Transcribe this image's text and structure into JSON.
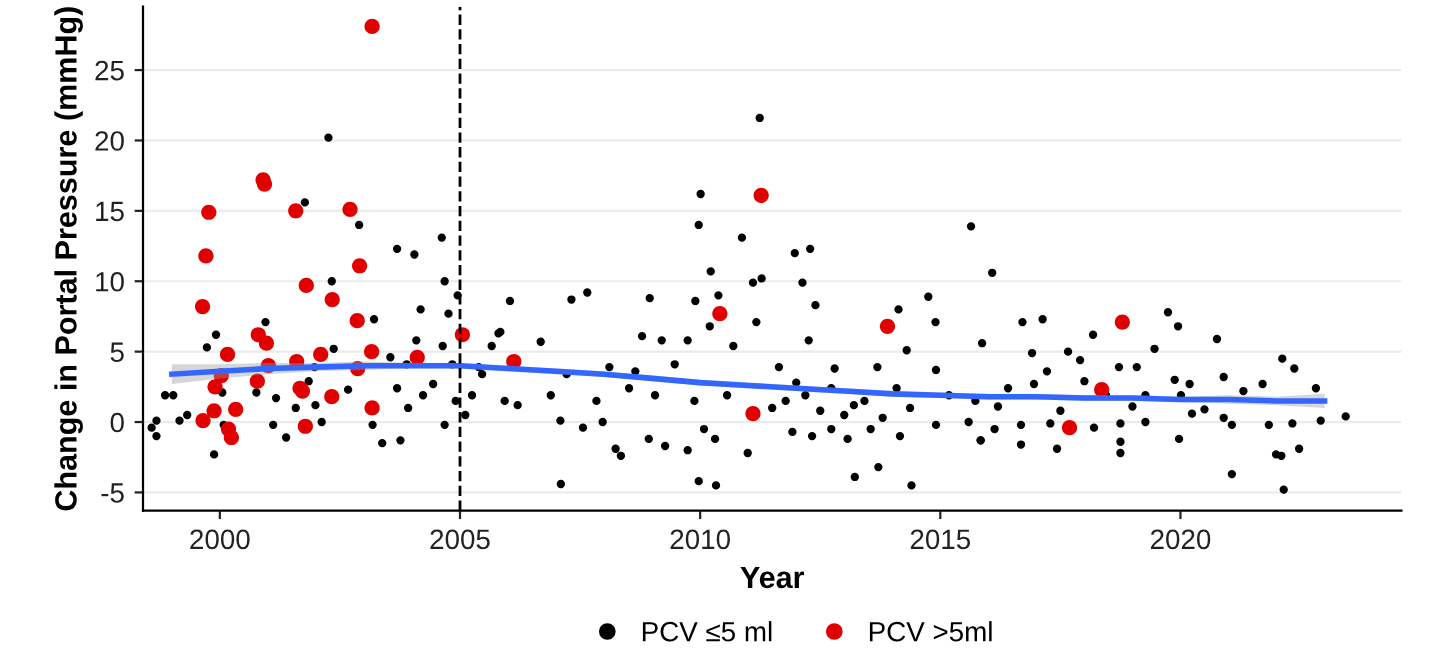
{
  "chart_data": {
    "type": "scatter",
    "xlabel": "Year",
    "ylabel": "Change in Portal Pressure (mmHg)",
    "xlim": [
      1998.4,
      2024.6
    ],
    "ylim": [
      -6.3,
      29.5
    ],
    "xticks": [
      2000,
      2005,
      2010,
      2015,
      2020
    ],
    "yticks": [
      -5,
      0,
      5,
      10,
      15,
      20,
      25
    ],
    "grid": "y",
    "legend": "bottom",
    "ref_lines": [
      {
        "axis": "x",
        "value": 2005,
        "label": null,
        "color": "#000000",
        "line_style": "dashed"
      }
    ],
    "series": [
      {
        "name": "PCV ≤5 ml",
        "color": "#000000",
        "marker": "circle",
        "x": [
          2002.26,
          2001.77,
          2002.9,
          2003.69,
          2004.05,
          2004.62,
          2004.68,
          2002.33,
          2004.95,
          2004.76,
          2004.18,
          2000.95,
          1999.92,
          2003.21,
          1999.73,
          2002.37,
          2004.09,
          2004.64,
          2004.84,
          2003.55,
          2003.89,
          1998.86,
          1999.03,
          1998.68,
          1998.58,
          1998.68,
          1999.16,
          1999.32,
          1999.88,
          2000.08,
          2000.05,
          2000.76,
          2001.17,
          2001.11,
          2001.38,
          2001.58,
          2001.99,
          2002.12,
          2001.97,
          2001.85,
          2002.67,
          2003.18,
          2003.38,
          2003.76,
          2003.69,
          2003.92,
          2004.23,
          2004.44,
          2004.68,
          2004.91,
          2005.11,
          2005.25,
          2005.66,
          2005.8,
          2006.04,
          2005.93,
          2005.46,
          2005.39,
          2011.24,
          2010.01,
          2009.97,
          2010.87,
          2010.22,
          2011.97,
          2012.29,
          2012.13,
          2011.1,
          2011.28,
          2010.38,
          2009.9,
          2007.32,
          2007.65,
          2008.95,
          2012.4,
          2011.17,
          2014.13,
          2014.75,
          2014.9,
          2015.64,
          2010.2,
          2006.68,
          2005.84,
          2008.79,
          2009.2,
          2009.74,
          2010.69,
          2012.26,
          2014.3,
          2015.87,
          2007.22,
          2008.11,
          2008.65,
          2009.47,
          2011.64,
          2012.8,
          2013.69,
          2014.91,
          2006.89,
          2007.84,
          2008.52,
          2009.06,
          2009.88,
          2010.56,
          2011.78,
          2012.19,
          2012.73,
          2013.0,
          2013.42,
          2014.09,
          2014.37,
          2015.18,
          2015.73,
          2006.2,
          2007.09,
          2007.56,
          2007.97,
          2008.93,
          2009.27,
          2009.74,
          2010.08,
          2010.31,
          2010.99,
          2011.92,
          2012.33,
          2012.73,
          2013.07,
          2013.55,
          2014.16,
          2014.91,
          2008.24,
          2008.35,
          2007.1,
          2009.97,
          2010.33,
          2013.22,
          2013.71,
          2014.4,
          2015.84,
          2016.08,
          2016.71,
          2017.13,
          2016.91,
          2017.66,
          2018.18,
          2017.91,
          2019.46,
          2019.74,
          2019.95,
          2020.76,
          2022.12,
          2022.37,
          2017.22,
          2018.72,
          2019.09,
          2019.88,
          2020.19,
          2020.9,
          2021.71,
          2016.41,
          2016.95,
          2018.45,
          2019.27,
          2020.01,
          2021.31,
          2022.82,
          2015.59,
          2016.13,
          2016.68,
          2017.29,
          2018.2,
          2018.75,
          2019.27,
          2019.97,
          2020.24,
          2020.9,
          2021.07,
          2021.84,
          2022.33,
          2022.92,
          2023.44,
          2015.84,
          2016.68,
          2017.43,
          2018.75,
          2018.75,
          2021.07,
          2021.99,
          2022.1,
          2022.47,
          2022.15,
          2011.5,
          2012.0,
          2012.5,
          2013.2,
          2013.8,
          2016.2,
          2017.5,
          2018.0,
          2019.0,
          2020.5
        ],
        "values": [
          20.2,
          15.6,
          14.0,
          12.3,
          11.9,
          13.1,
          10.0,
          10.0,
          9.0,
          7.7,
          8.0,
          7.1,
          6.2,
          7.3,
          5.3,
          5.2,
          5.8,
          5.4,
          4.1,
          4.6,
          4.1,
          1.9,
          1.9,
          0.1,
          -0.4,
          -1.0,
          0.1,
          0.5,
          -2.3,
          -0.2,
          2.1,
          2.1,
          1.7,
          -0.2,
          -1.1,
          1.0,
          1.2,
          0.0,
          3.9,
          2.9,
          2.3,
          -0.2,
          -1.5,
          -1.3,
          2.4,
          1.0,
          1.9,
          2.7,
          -0.2,
          1.5,
          0.5,
          1.9,
          5.4,
          6.3,
          8.6,
          1.5,
          3.4,
          3.9,
          21.6,
          16.2,
          14.0,
          13.1,
          10.7,
          12.0,
          12.3,
          9.9,
          9.9,
          10.2,
          9.0,
          8.6,
          8.7,
          9.2,
          8.8,
          8.3,
          7.1,
          8.0,
          8.9,
          7.1,
          13.9,
          6.8,
          5.7,
          6.4,
          6.1,
          5.8,
          5.8,
          5.4,
          5.8,
          5.1,
          5.6,
          3.4,
          3.9,
          3.6,
          4.1,
          3.9,
          3.8,
          3.9,
          3.7,
          1.9,
          1.5,
          2.4,
          1.9,
          1.5,
          1.9,
          1.5,
          1.9,
          2.4,
          0.5,
          1.5,
          2.4,
          1.0,
          1.9,
          1.5,
          1.2,
          0.1,
          -0.4,
          0.0,
          -1.2,
          -1.7,
          -2.0,
          -0.5,
          -1.2,
          -2.2,
          -0.7,
          -1.0,
          -0.5,
          -1.2,
          -0.5,
          -1.0,
          -0.2,
          -1.9,
          -2.4,
          -4.4,
          -4.2,
          -4.5,
          -3.9,
          -3.2,
          -4.5,
          -1.3,
          10.6,
          7.1,
          7.3,
          4.9,
          5.0,
          6.2,
          4.4,
          5.2,
          7.8,
          6.8,
          5.9,
          4.5,
          3.8,
          3.6,
          3.9,
          3.9,
          3.0,
          2.7,
          3.2,
          2.7,
          2.4,
          2.7,
          1.9,
          1.9,
          1.9,
          2.2,
          2.4,
          0.0,
          -0.5,
          -0.2,
          -0.1,
          -0.4,
          -0.1,
          0.0,
          -1.2,
          0.6,
          0.3,
          -0.2,
          -0.2,
          -0.1,
          0.1,
          0.4,
          -1.3,
          -1.6,
          -1.9,
          -2.2,
          -1.4,
          -3.7,
          -2.3,
          -2.4,
          -1.9,
          -4.8,
          1.0,
          2.8,
          0.8,
          1.2,
          0.3,
          1.1,
          0.8,
          2.9,
          1.1,
          0.9
        ]
      },
      {
        "name": "PCV >5ml",
        "color": "#e00000",
        "marker": "circle",
        "x": [
          2003.17,
          2000.93,
          2000.9,
          1999.77,
          2001.58,
          2002.71,
          1999.71,
          2002.91,
          2001.8,
          2002.34,
          1999.64,
          2002.86,
          2000.8,
          2000.97,
          2005.05,
          2000.16,
          2003.16,
          2002.1,
          2001.6,
          2001.01,
          2002.87,
          2004.11,
          2006.12,
          2000.03,
          1999.9,
          2000.78,
          2001.67,
          2001.72,
          2002.33,
          1999.88,
          2000.33,
          1999.65,
          2000.18,
          2000.24,
          2001.78,
          2003.17,
          2010.41,
          2011.27,
          2011.1,
          2013.9,
          2018.79,
          2018.36,
          2017.69
        ],
        "values": [
          28.1,
          16.9,
          17.2,
          14.9,
          15.0,
          15.1,
          11.8,
          11.1,
          9.7,
          8.7,
          8.2,
          7.2,
          6.2,
          5.6,
          6.2,
          4.8,
          5.0,
          4.8,
          4.3,
          4.0,
          3.8,
          4.6,
          4.3,
          3.3,
          2.5,
          2.9,
          2.4,
          2.2,
          1.8,
          0.8,
          0.9,
          0.1,
          -0.5,
          -1.1,
          -0.3,
          1.0,
          7.7,
          16.1,
          0.6,
          6.8,
          7.1,
          2.3,
          -0.4
        ]
      },
      {
        "type": "line",
        "color": "#3366ff",
        "x": [
          1999.0,
          2000.0,
          2001.0,
          2002.0,
          2003.0,
          2004.0,
          2005.0,
          2006.0,
          2007.0,
          2008.0,
          2009.0,
          2010.0,
          2011.0,
          2012.0,
          2013.0,
          2014.0,
          2015.0,
          2016.0,
          2017.0,
          2018.0,
          2019.0,
          2020.0,
          2021.0,
          2022.0,
          2023.0
        ],
        "values": [
          3.4,
          3.6,
          3.8,
          3.9,
          4.0,
          4.0,
          4.0,
          3.8,
          3.6,
          3.4,
          3.1,
          2.8,
          2.6,
          2.4,
          2.2,
          2.0,
          1.9,
          1.8,
          1.8,
          1.7,
          1.7,
          1.6,
          1.6,
          1.5,
          1.5
        ],
        "lower": [
          2.7,
          3.1,
          3.4,
          3.6,
          3.7,
          3.8,
          3.8,
          3.6,
          3.4,
          3.2,
          2.9,
          2.6,
          2.4,
          2.2,
          2.0,
          1.8,
          1.7,
          1.6,
          1.6,
          1.5,
          1.5,
          1.4,
          1.3,
          1.2,
          1.0
        ],
        "upper": [
          4.1,
          4.1,
          4.2,
          4.2,
          4.3,
          4.2,
          4.2,
          4.0,
          3.8,
          3.6,
          3.3,
          3.0,
          2.8,
          2.6,
          2.4,
          2.2,
          2.1,
          2.0,
          2.0,
          1.9,
          1.9,
          1.8,
          1.9,
          1.8,
          2.0
        ]
      }
    ]
  }
}
